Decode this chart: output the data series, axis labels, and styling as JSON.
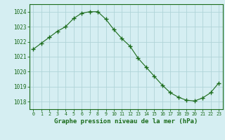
{
  "x": [
    0,
    1,
    2,
    3,
    4,
    5,
    6,
    7,
    8,
    9,
    10,
    11,
    12,
    13,
    14,
    15,
    16,
    17,
    18,
    19,
    20,
    21,
    22,
    23
  ],
  "y": [
    1021.5,
    1021.9,
    1022.3,
    1022.7,
    1023.0,
    1023.55,
    1023.9,
    1024.0,
    1024.0,
    1023.5,
    1022.8,
    1022.2,
    1021.7,
    1020.9,
    1020.3,
    1019.7,
    1019.1,
    1018.6,
    1018.3,
    1018.1,
    1018.05,
    1018.25,
    1018.6,
    1019.25
  ],
  "line_color": "#1a6b1a",
  "marker": "+",
  "marker_size": 4,
  "bg_color": "#d5eef2",
  "grid_color": "#b0d4d8",
  "axis_label_color": "#1a6b1a",
  "tick_color": "#1a6b1a",
  "xlabel": "Graphe pression niveau de la mer (hPa)",
  "xlabel_fontsize": 6.5,
  "ytick_labels": [
    "1018",
    "1019",
    "1020",
    "1021",
    "1022",
    "1023",
    "1024"
  ],
  "ytick_values": [
    1018,
    1019,
    1020,
    1021,
    1022,
    1023,
    1024
  ],
  "ylim": [
    1017.5,
    1024.5
  ],
  "xlim": [
    -0.5,
    23.5
  ],
  "xtick_labels": [
    "0",
    "1",
    "2",
    "3",
    "4",
    "5",
    "6",
    "7",
    "8",
    "9",
    "10",
    "11",
    "12",
    "13",
    "14",
    "15",
    "16",
    "17",
    "18",
    "19",
    "20",
    "21",
    "22",
    "23"
  ],
  "xtick_values": [
    0,
    1,
    2,
    3,
    4,
    5,
    6,
    7,
    8,
    9,
    10,
    11,
    12,
    13,
    14,
    15,
    16,
    17,
    18,
    19,
    20,
    21,
    22,
    23
  ],
  "border_color": "#1a6b1a"
}
